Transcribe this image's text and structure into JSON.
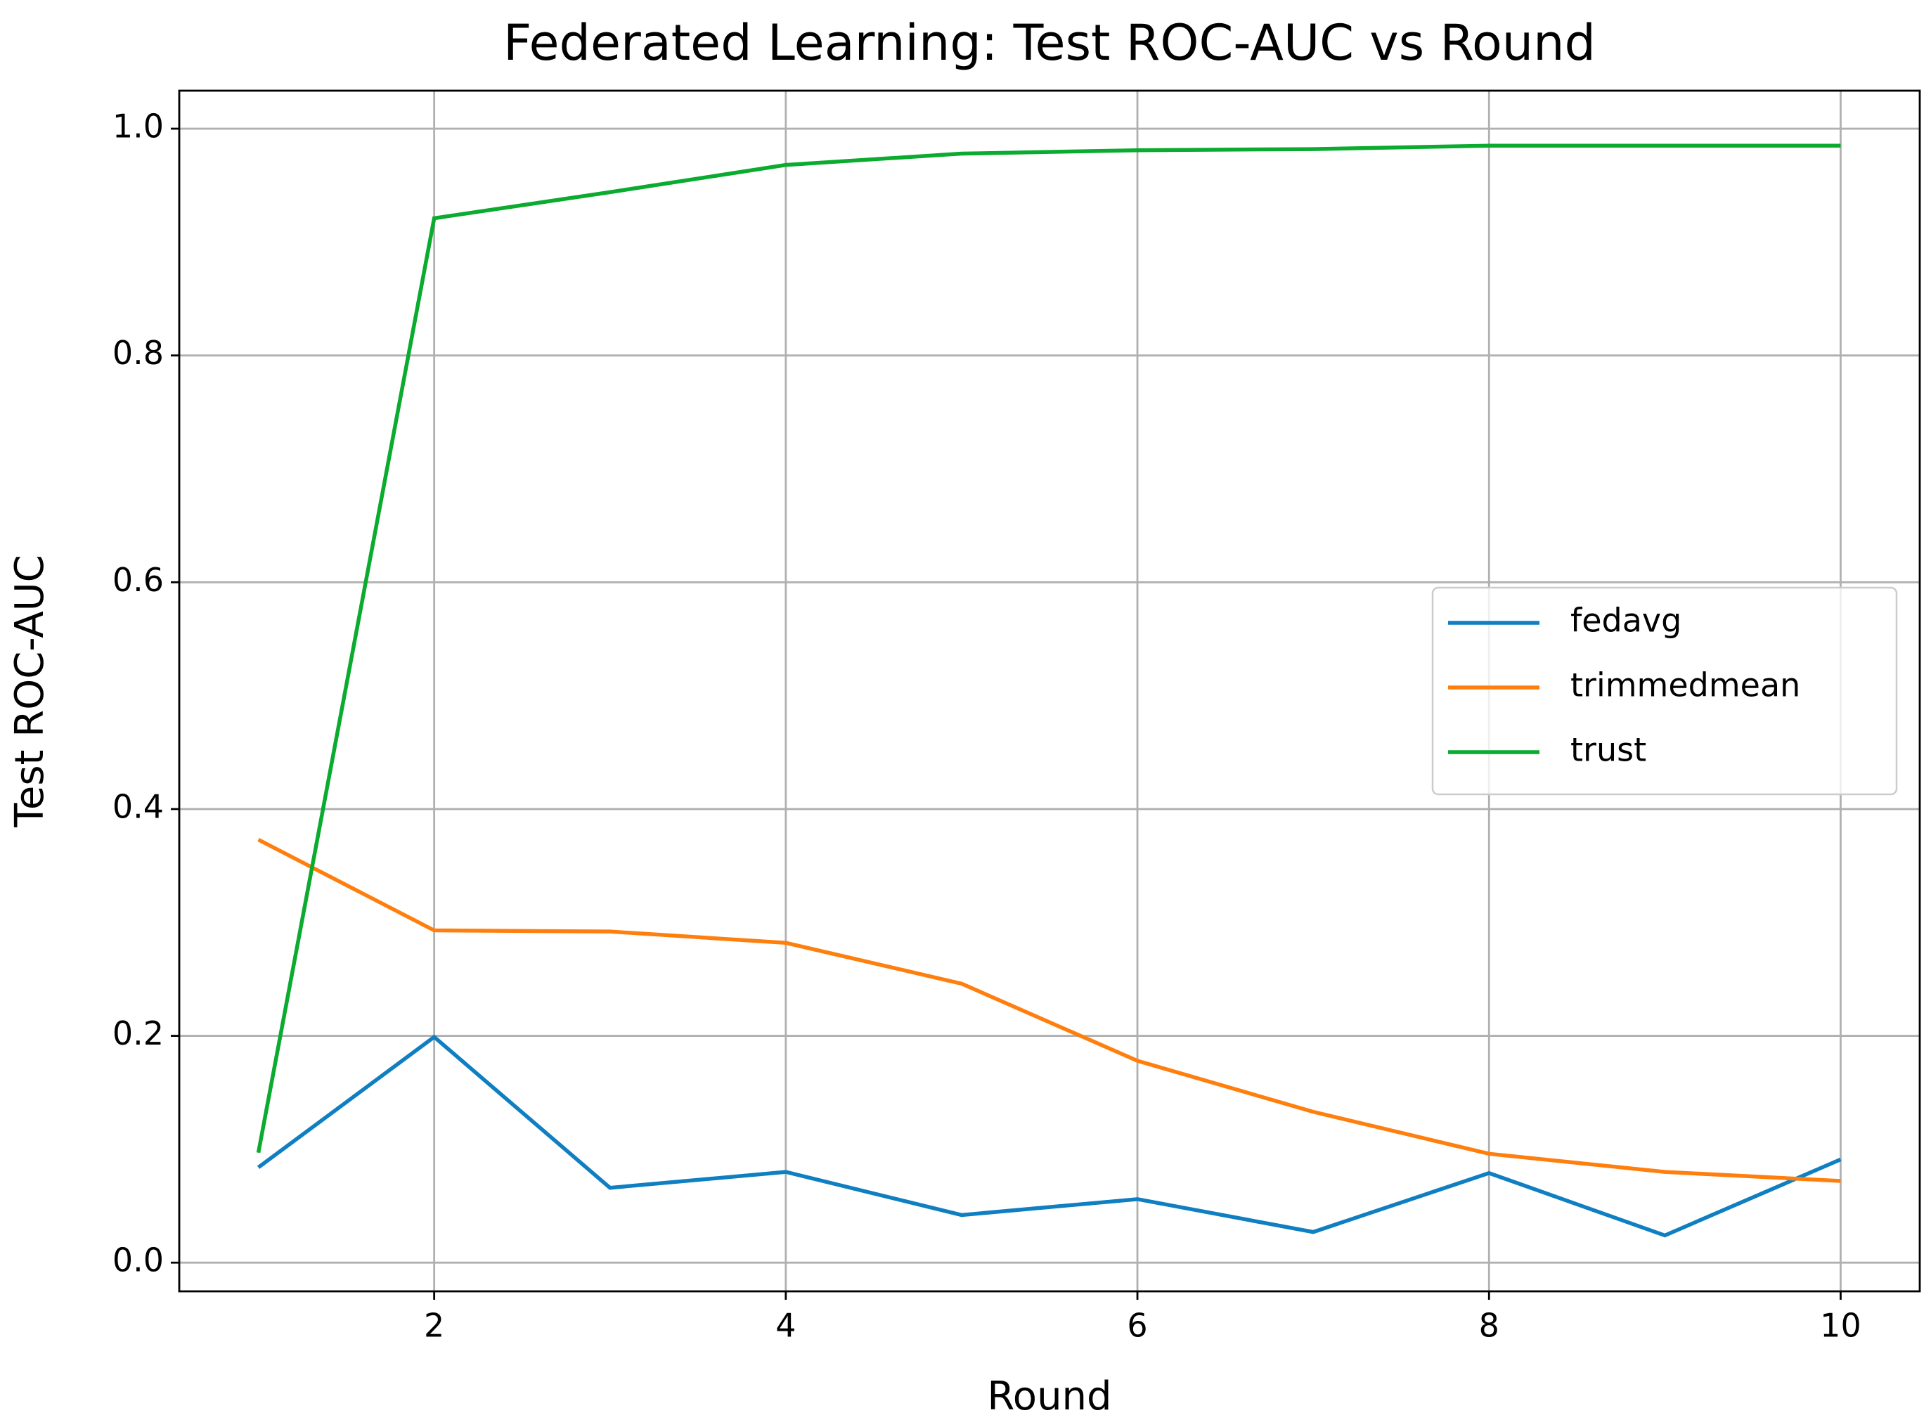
{
  "chart_data": {
    "type": "line",
    "title": "Federated Learning: Test ROC-AUC vs Round",
    "x_label": "Round",
    "y_label": "Test ROC-AUC",
    "x": [
      1,
      2,
      3,
      4,
      5,
      6,
      7,
      8,
      9,
      10
    ],
    "series": [
      {
        "name": "fedavg",
        "color": "#0f7fc2",
        "values": [
          0.084,
          0.199,
          0.066,
          0.08,
          0.042,
          0.056,
          0.027,
          0.079,
          0.024,
          0.091
        ]
      },
      {
        "name": "trimmedmean",
        "color": "#ff7f0e",
        "values": [
          0.373,
          0.293,
          0.292,
          0.282,
          0.246,
          0.178,
          0.133,
          0.096,
          0.08,
          0.072
        ]
      },
      {
        "name": "trust",
        "color": "#0aab2e",
        "values": [
          0.097,
          0.921,
          0.944,
          0.968,
          0.978,
          0.981,
          0.982,
          0.985,
          0.985,
          0.985
        ]
      }
    ],
    "xlim": [
      0.55,
      10.45
    ],
    "xticks": [
      2,
      4,
      6,
      8,
      10
    ],
    "ylim": [
      -0.0253,
      1.0335
    ],
    "yticks": [
      {
        "value": 0,
        "label": "0.0"
      },
      {
        "value": 0.2,
        "label": "0.2"
      },
      {
        "value": 0.4,
        "label": "0.4"
      },
      {
        "value": 0.6,
        "label": "0.6"
      },
      {
        "value": 0.8,
        "label": "0.8"
      },
      {
        "value": 1,
        "label": "1.0"
      }
    ],
    "grid": true,
    "legend": "center right"
  }
}
